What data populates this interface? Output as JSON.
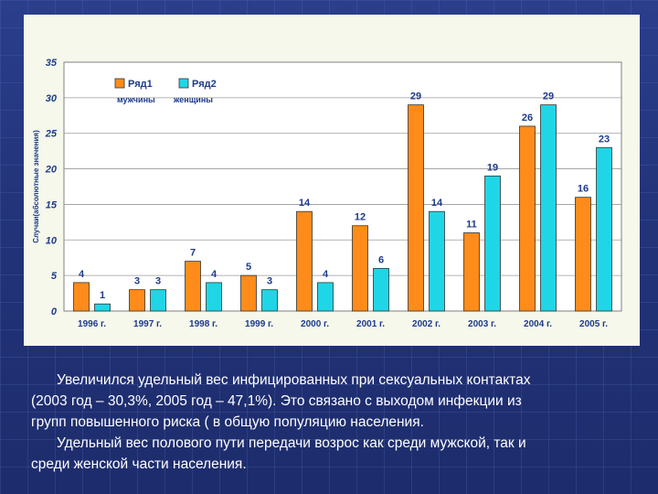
{
  "chart_data": {
    "type": "bar",
    "ylabel": "Случаи(абсолютные значения)",
    "ylim": [
      0,
      35
    ],
    "yticks": [
      0,
      5,
      10,
      15,
      20,
      25,
      30,
      35
    ],
    "grid": true,
    "legend_position": "top-left",
    "categories": [
      "1996 г.",
      "1997 г.",
      "1998 г.",
      "1999 г.",
      "2000 г.",
      "2001 г.",
      "2002 г.",
      "2003 г.",
      "2004 г.",
      "2005 г."
    ],
    "series": [
      {
        "name": "Ряд1",
        "sublabel": "мужчины",
        "color": "#ff8c1a",
        "values": [
          4,
          3,
          7,
          5,
          14,
          12,
          29,
          11,
          26,
          16
        ]
      },
      {
        "name": "Ряд2",
        "sublabel": "женщины",
        "color": "#1fd6e6",
        "values": [
          1,
          3,
          4,
          3,
          4,
          6,
          14,
          19,
          29,
          23
        ]
      }
    ]
  },
  "caption": {
    "line1": "Увеличился удельный вес инфицированных при  сексуальных контактах",
    "line2": "(2003 год – 30,3%, 2005 год – 47,1%). Это связано с выходом инфекции из",
    "line3": "групп повышенного риска (  в общую популяцию населения.",
    "line4": "Удельный вес полового пути передачи возрос как среди мужской, так и",
    "line5": "среди женской части населения."
  }
}
